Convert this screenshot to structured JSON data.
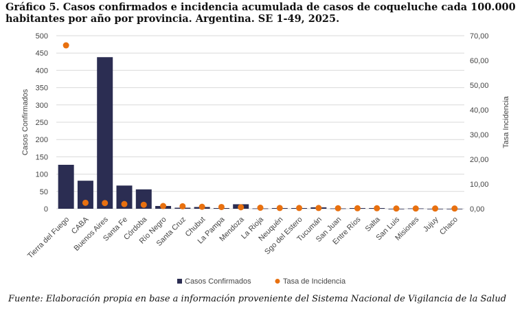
{
  "title": "Gráfico 5. Casos confirmados e incidencia acumulada de casos de coqueluche cada 100.000 habitantes por año por provincia. Argentina. SE 1-49, 2025.",
  "source": "Fuente: Elaboración propia en base a información proveniente del Sistema Nacional de Vigilancia de la Salud",
  "chart_data": {
    "type": "bar+scatter",
    "categories": [
      "Tierra del Fuego",
      "CABA",
      "Buenos Aires",
      "Santa Fe",
      "Córdoba",
      "Río Negro",
      "Santa Cruz",
      "Chubut",
      "La Pampa",
      "Mendoza",
      "La Rioja",
      "Neuquén",
      "Sgo del Estero",
      "Tucumán",
      "San Juan",
      "Entre Ríos",
      "Salta",
      "San Luis",
      "Misiones",
      "Jujuy",
      "Chaco"
    ],
    "series": [
      {
        "name": "Casos Confirmados",
        "axis": "left",
        "type": "bar",
        "color": "#2b2d52",
        "values": [
          127,
          81,
          438,
          67,
          56,
          8,
          3,
          5,
          2,
          13,
          1,
          2,
          2,
          4,
          1,
          2,
          2,
          0,
          1,
          0,
          0
        ]
      },
      {
        "name": "Tasa de Incidencia",
        "axis": "right",
        "type": "scatter",
        "color": "#e8700f",
        "values": [
          66.1,
          2.4,
          2.3,
          1.9,
          1.6,
          1.1,
          1.0,
          0.8,
          0.7,
          0.6,
          0.4,
          0.3,
          0.3,
          0.3,
          0.2,
          0.2,
          0.2,
          0.1,
          0.1,
          0.1,
          0.1
        ]
      }
    ],
    "ylabel": "Casos Confirmados",
    "ylim": [
      0,
      500
    ],
    "yticks": [
      "0",
      "50",
      "100",
      "150",
      "200",
      "250",
      "300",
      "350",
      "400",
      "450",
      "500"
    ],
    "y2label": "Tasa Incidencia",
    "y2lim": [
      0,
      70
    ],
    "y2ticks": [
      "0,00",
      "10,00",
      "20,00",
      "30,00",
      "40,00",
      "50,00",
      "60,00",
      "70,00"
    ],
    "grid": true,
    "legend": "bottom"
  }
}
